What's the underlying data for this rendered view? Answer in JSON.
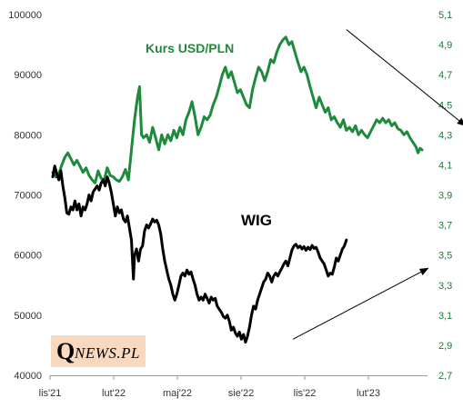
{
  "chart_data": {
    "type": "line",
    "series": [
      {
        "name": "Kurs USD/PLN",
        "axis": "right",
        "color": "#1e8a3c",
        "points": [
          [
            0,
            4.05
          ],
          [
            3,
            4.02
          ],
          [
            6,
            4.04
          ],
          [
            9,
            4.1
          ],
          [
            12,
            4.15
          ],
          [
            15,
            4.18
          ],
          [
            18,
            4.14
          ],
          [
            21,
            4.1
          ],
          [
            24,
            4.13
          ],
          [
            27,
            4.09
          ],
          [
            30,
            4.05
          ],
          [
            33,
            4.08
          ],
          [
            36,
            4.03
          ],
          [
            39,
            4.0
          ],
          [
            42,
            3.98
          ],
          [
            45,
            4.06
          ],
          [
            48,
            4.01
          ],
          [
            51,
            4.0
          ],
          [
            54,
            4.08
          ],
          [
            57,
            4.03
          ],
          [
            60,
            4.02
          ],
          [
            63,
            4.0
          ],
          [
            66,
            3.99
          ],
          [
            69,
            4.02
          ],
          [
            72,
            4.07
          ],
          [
            75,
            4.0
          ],
          [
            78,
            4.2
          ],
          [
            81,
            4.4
          ],
          [
            84,
            4.55
          ],
          [
            86,
            4.62
          ],
          [
            88,
            4.3
          ],
          [
            90,
            4.28
          ],
          [
            93,
            4.3
          ],
          [
            96,
            4.25
          ],
          [
            99,
            4.35
          ],
          [
            102,
            4.28
          ],
          [
            105,
            4.2
          ],
          [
            108,
            4.3
          ],
          [
            111,
            4.24
          ],
          [
            114,
            4.3
          ],
          [
            117,
            4.26
          ],
          [
            120,
            4.33
          ],
          [
            123,
            4.28
          ],
          [
            126,
            4.35
          ],
          [
            129,
            4.3
          ],
          [
            132,
            4.4
          ],
          [
            135,
            4.45
          ],
          [
            138,
            4.52
          ],
          [
            141,
            4.42
          ],
          [
            144,
            4.3
          ],
          [
            147,
            4.35
          ],
          [
            150,
            4.42
          ],
          [
            153,
            4.4
          ],
          [
            156,
            4.43
          ],
          [
            159,
            4.5
          ],
          [
            162,
            4.55
          ],
          [
            165,
            4.62
          ],
          [
            168,
            4.7
          ],
          [
            171,
            4.75
          ],
          [
            174,
            4.68
          ],
          [
            177,
            4.72
          ],
          [
            180,
            4.65
          ],
          [
            183,
            4.58
          ],
          [
            186,
            4.6
          ],
          [
            189,
            4.55
          ],
          [
            192,
            4.5
          ],
          [
            195,
            4.48
          ],
          [
            198,
            4.6
          ],
          [
            201,
            4.68
          ],
          [
            204,
            4.75
          ],
          [
            207,
            4.72
          ],
          [
            210,
            4.66
          ],
          [
            213,
            4.72
          ],
          [
            216,
            4.8
          ],
          [
            219,
            4.78
          ],
          [
            222,
            4.85
          ],
          [
            225,
            4.9
          ],
          [
            228,
            4.93
          ],
          [
            231,
            4.95
          ],
          [
            234,
            4.9
          ],
          [
            237,
            4.92
          ],
          [
            240,
            4.85
          ],
          [
            243,
            4.78
          ],
          [
            246,
            4.72
          ],
          [
            249,
            4.75
          ],
          [
            252,
            4.7
          ],
          [
            255,
            4.62
          ],
          [
            258,
            4.55
          ],
          [
            261,
            4.48
          ],
          [
            264,
            4.55
          ],
          [
            267,
            4.5
          ],
          [
            270,
            4.45
          ],
          [
            273,
            4.48
          ],
          [
            276,
            4.4
          ],
          [
            279,
            4.42
          ],
          [
            282,
            4.38
          ],
          [
            285,
            4.35
          ],
          [
            288,
            4.4
          ],
          [
            291,
            4.33
          ],
          [
            294,
            4.35
          ],
          [
            297,
            4.32
          ],
          [
            300,
            4.36
          ],
          [
            303,
            4.3
          ],
          [
            306,
            4.33
          ],
          [
            309,
            4.3
          ],
          [
            312,
            4.28
          ],
          [
            315,
            4.32
          ],
          [
            318,
            4.36
          ],
          [
            321,
            4.4
          ],
          [
            324,
            4.38
          ],
          [
            327,
            4.41
          ],
          [
            330,
            4.38
          ],
          [
            333,
            4.4
          ],
          [
            336,
            4.36
          ],
          [
            339,
            4.38
          ],
          [
            342,
            4.34
          ],
          [
            345,
            4.33
          ],
          [
            348,
            4.3
          ],
          [
            351,
            4.32
          ],
          [
            354,
            4.28
          ],
          [
            357,
            4.25
          ],
          [
            360,
            4.22
          ],
          [
            362,
            4.18
          ],
          [
            364,
            4.21
          ],
          [
            366,
            4.2
          ]
        ]
      },
      {
        "name": "WIG",
        "axis": "left",
        "color": "#000000",
        "points": [
          [
            0,
            73000
          ],
          [
            2,
            74800
          ],
          [
            4,
            73500
          ],
          [
            6,
            72500
          ],
          [
            8,
            74000
          ],
          [
            10,
            71500
          ],
          [
            12,
            69500
          ],
          [
            14,
            67000
          ],
          [
            16,
            66800
          ],
          [
            18,
            68000
          ],
          [
            20,
            67500
          ],
          [
            22,
            69000
          ],
          [
            24,
            67500
          ],
          [
            26,
            68500
          ],
          [
            28,
            66500
          ],
          [
            30,
            68000
          ],
          [
            32,
            67500
          ],
          [
            34,
            68500
          ],
          [
            36,
            70000
          ],
          [
            38,
            69000
          ],
          [
            40,
            70500
          ],
          [
            42,
            71000
          ],
          [
            44,
            71500
          ],
          [
            46,
            70800
          ],
          [
            48,
            72000
          ],
          [
            50,
            72500
          ],
          [
            52,
            71500
          ],
          [
            54,
            73000
          ],
          [
            56,
            72000
          ],
          [
            58,
            70500
          ],
          [
            60,
            68500
          ],
          [
            62,
            66500
          ],
          [
            64,
            68000
          ],
          [
            66,
            67000
          ],
          [
            68,
            67500
          ],
          [
            70,
            66000
          ],
          [
            72,
            65500
          ],
          [
            74,
            66500
          ],
          [
            76,
            64500
          ],
          [
            78,
            62500
          ],
          [
            80,
            56000
          ],
          [
            81,
            60000
          ],
          [
            83,
            61000
          ],
          [
            85,
            59000
          ],
          [
            87,
            61000
          ],
          [
            89,
            61500
          ],
          [
            91,
            64000
          ],
          [
            93,
            65000
          ],
          [
            95,
            64500
          ],
          [
            97,
            65200
          ],
          [
            99,
            66000
          ],
          [
            101,
            65500
          ],
          [
            103,
            65800
          ],
          [
            105,
            65000
          ],
          [
            107,
            63500
          ],
          [
            109,
            61000
          ],
          [
            111,
            59000
          ],
          [
            113,
            57500
          ],
          [
            115,
            56000
          ],
          [
            117,
            55000
          ],
          [
            119,
            53500
          ],
          [
            121,
            52500
          ],
          [
            123,
            53500
          ],
          [
            125,
            55000
          ],
          [
            127,
            56500
          ],
          [
            129,
            57000
          ],
          [
            131,
            56500
          ],
          [
            133,
            57500
          ],
          [
            135,
            56800
          ],
          [
            137,
            57200
          ],
          [
            139,
            56000
          ],
          [
            141,
            55000
          ],
          [
            143,
            53500
          ],
          [
            145,
            52500
          ],
          [
            147,
            53000
          ],
          [
            149,
            52500
          ],
          [
            151,
            53500
          ],
          [
            153,
            52800
          ],
          [
            155,
            52000
          ],
          [
            157,
            53000
          ],
          [
            159,
            52500
          ],
          [
            161,
            52800
          ],
          [
            163,
            51500
          ],
          [
            165,
            51000
          ],
          [
            167,
            50500
          ],
          [
            169,
            49800
          ],
          [
            171,
            49500
          ],
          [
            173,
            50000
          ],
          [
            175,
            49000
          ],
          [
            177,
            47500
          ],
          [
            179,
            48000
          ],
          [
            181,
            47000
          ],
          [
            183,
            46500
          ],
          [
            185,
            47200
          ],
          [
            187,
            46000
          ],
          [
            189,
            46800
          ],
          [
            191,
            45500
          ],
          [
            193,
            46500
          ],
          [
            195,
            48000
          ],
          [
            197,
            50000
          ],
          [
            199,
            51500
          ],
          [
            201,
            51000
          ],
          [
            203,
            52500
          ],
          [
            205,
            53500
          ],
          [
            207,
            54500
          ],
          [
            209,
            55500
          ],
          [
            211,
            56000
          ],
          [
            213,
            57000
          ],
          [
            215,
            56500
          ],
          [
            217,
            55500
          ],
          [
            219,
            56500
          ],
          [
            221,
            57000
          ],
          [
            223,
            56500
          ],
          [
            225,
            57200
          ],
          [
            227,
            57800
          ],
          [
            229,
            58500
          ],
          [
            231,
            59000
          ],
          [
            233,
            58200
          ],
          [
            235,
            59500
          ],
          [
            237,
            60800
          ],
          [
            239,
            61500
          ],
          [
            241,
            61800
          ],
          [
            243,
            61200
          ],
          [
            245,
            61500
          ],
          [
            247,
            61000
          ],
          [
            249,
            61400
          ],
          [
            251,
            60800
          ],
          [
            253,
            61300
          ],
          [
            255,
            60900
          ],
          [
            257,
            61600
          ],
          [
            259,
            61100
          ],
          [
            261,
            61300
          ],
          [
            263,
            60500
          ],
          [
            265,
            59500
          ],
          [
            267,
            59000
          ],
          [
            269,
            58500
          ],
          [
            271,
            57500
          ],
          [
            273,
            56500
          ],
          [
            275,
            57000
          ],
          [
            277,
            56800
          ],
          [
            279,
            58000
          ],
          [
            281,
            59500
          ],
          [
            283,
            59000
          ],
          [
            285,
            60000
          ],
          [
            287,
            61000
          ],
          [
            289,
            61500
          ],
          [
            291,
            62500
          ]
        ]
      }
    ],
    "x_ticks": [
      "lis'21",
      "lut'22",
      "maj'22",
      "sie'22",
      "lis'22",
      "lut'23"
    ],
    "y_left": {
      "min": 40000,
      "max": 100000,
      "ticks": [
        "40000",
        "50000",
        "60000",
        "70000",
        "80000",
        "90000",
        "100000"
      ]
    },
    "y_right": {
      "min": 2.7,
      "max": 5.1,
      "ticks": [
        "2,7",
        "2,9",
        "3,1",
        "3,3",
        "3,5",
        "3,7",
        "3,9",
        "4,1",
        "4,3",
        "4,5",
        "4,7",
        "4,9",
        "5,1"
      ]
    },
    "labels": {
      "usd": "Kurs USD/PLN",
      "wig": "WIG"
    },
    "arrows": [
      {
        "name": "usd-downtrend",
        "from": [
          291,
          5.0
        ],
        "to": [
          409,
          4.36
        ]
      },
      {
        "name": "wig-uptrend",
        "from": [
          238,
          46000
        ],
        "to": [
          372,
          57800
        ]
      }
    ],
    "grid": false,
    "legend": "none"
  },
  "logo": {
    "q": "Q",
    "rest": "NEWS.PL"
  }
}
